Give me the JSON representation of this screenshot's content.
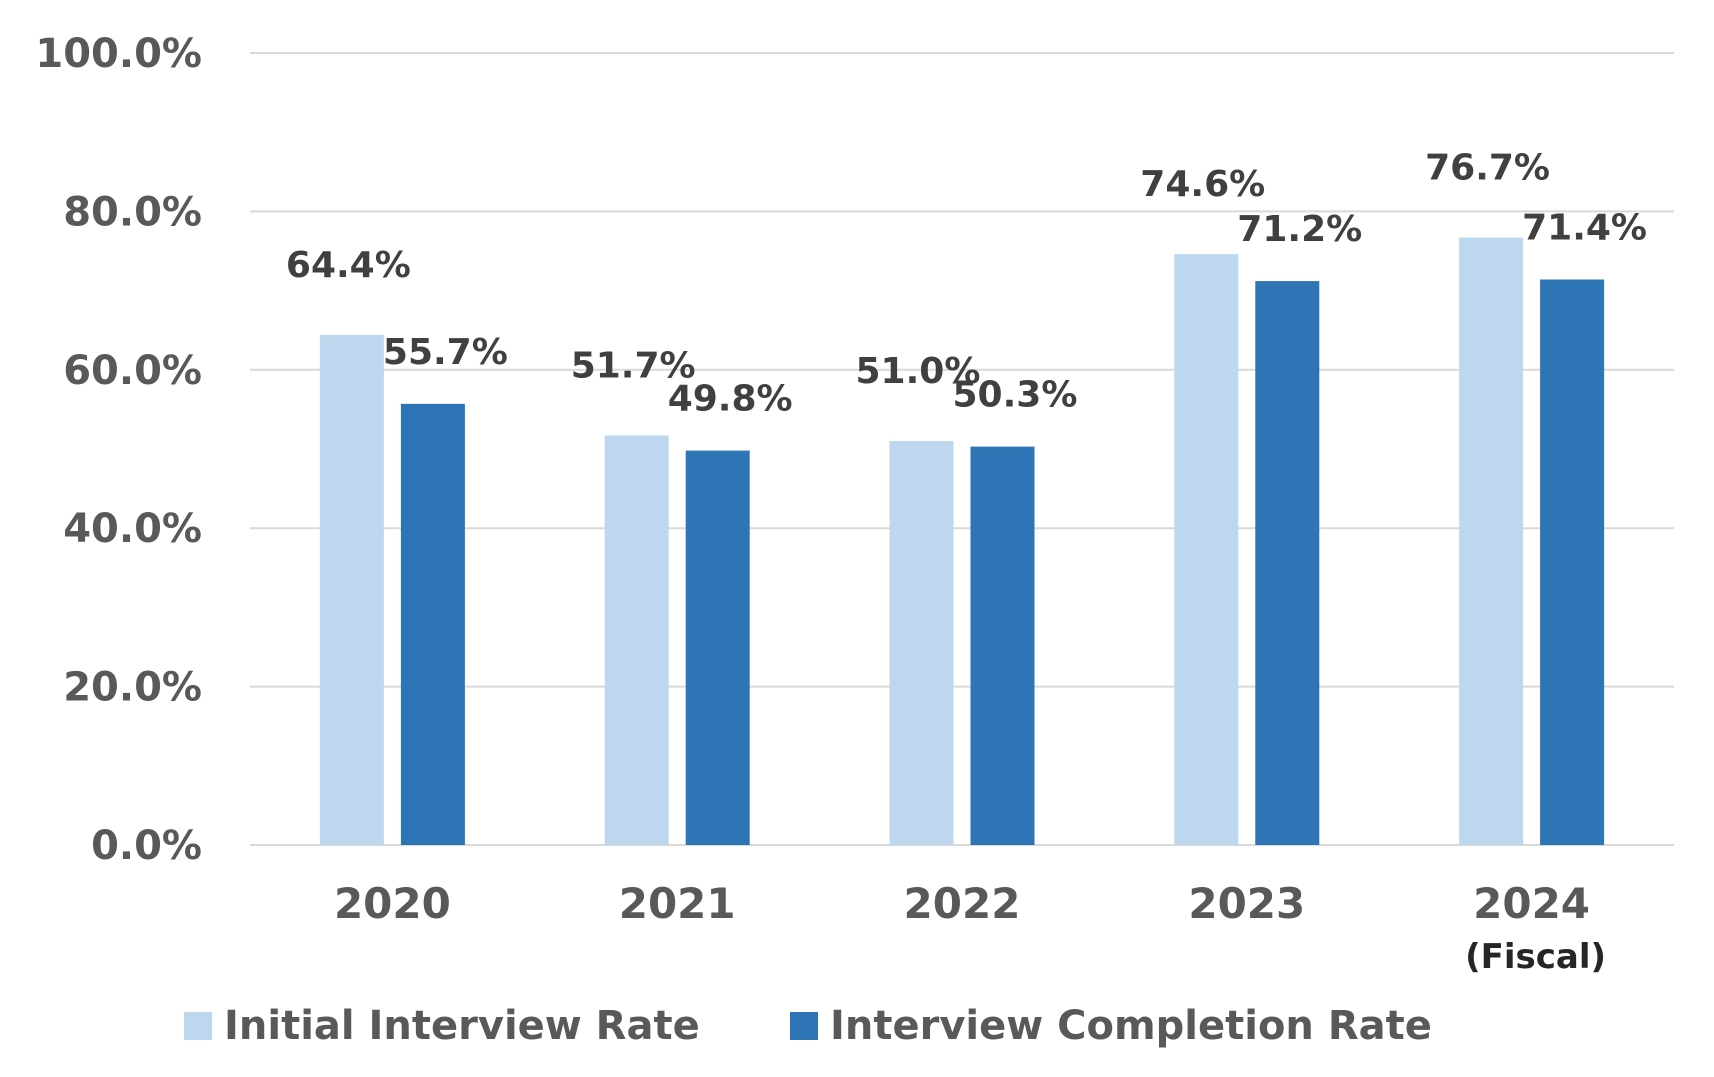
{
  "chart_data": {
    "type": "bar",
    "categories": [
      "2020",
      "2021",
      "2022",
      "2023",
      "2024"
    ],
    "x_unit_label": "(Fiscal)",
    "series": [
      {
        "name": "Initial Interview Rate",
        "values": [
          64.4,
          51.7,
          51.0,
          74.6,
          76.7
        ],
        "labels": [
          "64.4%",
          "51.7%",
          "51.0%",
          "74.6%",
          "76.7%"
        ],
        "color": "#bdd7ee"
      },
      {
        "name": "Interview Completion Rate",
        "values": [
          55.7,
          49.8,
          50.3,
          71.2,
          71.4
        ],
        "labels": [
          "55.7%",
          "49.8%",
          "50.3%",
          "71.2%",
          "71.4%"
        ],
        "color": "#2e75b6"
      }
    ],
    "ylim": [
      0,
      100
    ],
    "yticks": [
      0,
      20,
      40,
      60,
      80,
      100
    ],
    "ytick_labels": [
      "0.0%",
      "20.0%",
      "40.0%",
      "60.0%",
      "80.0%",
      "100.0%"
    ],
    "xlabel": "",
    "ylabel": "",
    "grid": true,
    "legend_position": "bottom",
    "gridline_color": "#d9d9d9"
  }
}
